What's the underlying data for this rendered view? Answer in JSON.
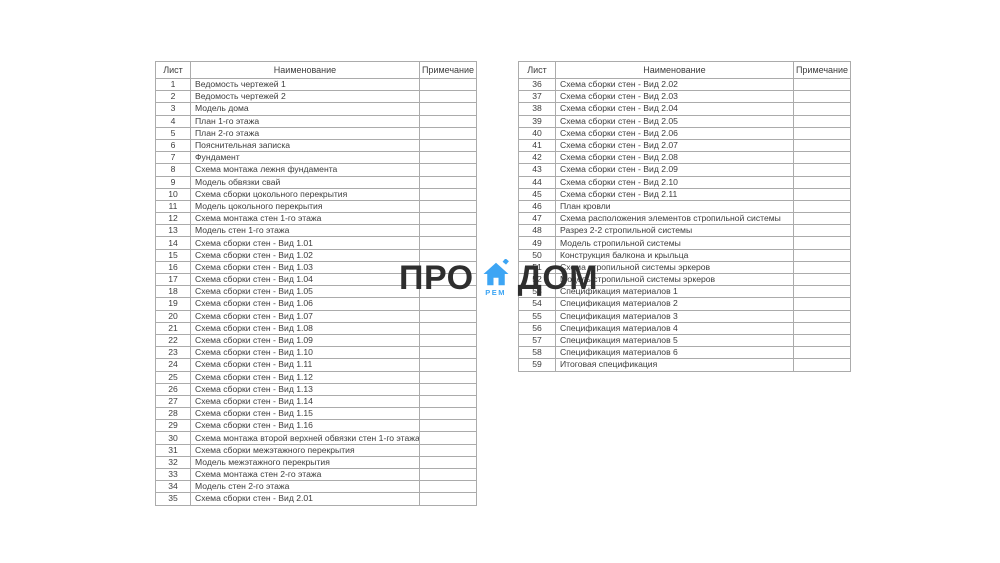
{
  "page": {
    "background": "#ffffff"
  },
  "watermark": {
    "text_left": "ПРО",
    "text_right": "ДОМ",
    "subtext": "РЕМ",
    "text_color": "#2e2e2e",
    "accent_color": "#3da5f4"
  },
  "tables": [
    {
      "id": "left",
      "headers": [
        "Лист",
        "Наименование",
        "Примечание"
      ],
      "rows": [
        [
          "1",
          "Ведомость чертежей 1",
          ""
        ],
        [
          "2",
          "Ведомость чертежей 2",
          ""
        ],
        [
          "3",
          "Модель дома",
          ""
        ],
        [
          "4",
          "План 1-го этажа",
          ""
        ],
        [
          "5",
          "План 2-го этажа",
          ""
        ],
        [
          "6",
          "Пояснительная записка",
          ""
        ],
        [
          "7",
          "Фундамент",
          ""
        ],
        [
          "8",
          "Схема монтажа лежня фундамента",
          ""
        ],
        [
          "9",
          "Модель обвязки свай",
          ""
        ],
        [
          "10",
          "Схема сборки цокольного перекрытия",
          ""
        ],
        [
          "11",
          "Модель цокольного перекрытия",
          ""
        ],
        [
          "12",
          "Схема монтажа стен 1-го этажа",
          ""
        ],
        [
          "13",
          "Модель стен 1-го этажа",
          ""
        ],
        [
          "14",
          "Схема сборки стен - Вид 1.01",
          ""
        ],
        [
          "15",
          "Схема сборки стен - Вид 1.02",
          ""
        ],
        [
          "16",
          "Схема сборки стен - Вид 1.03",
          ""
        ],
        [
          "17",
          "Схема сборки стен - Вид 1.04",
          ""
        ],
        [
          "18",
          "Схема сборки стен - Вид 1.05",
          ""
        ],
        [
          "19",
          "Схема сборки стен - Вид 1.06",
          ""
        ],
        [
          "20",
          "Схема сборки стен - Вид 1.07",
          ""
        ],
        [
          "21",
          "Схема сборки стен - Вид 1.08",
          ""
        ],
        [
          "22",
          "Схема сборки стен - Вид 1.09",
          ""
        ],
        [
          "23",
          "Схема сборки стен - Вид 1.10",
          ""
        ],
        [
          "24",
          "Схема сборки стен - Вид 1.11",
          ""
        ],
        [
          "25",
          "Схема сборки стен - Вид 1.12",
          ""
        ],
        [
          "26",
          "Схема сборки стен - Вид 1.13",
          ""
        ],
        [
          "27",
          "Схема сборки стен - Вид 1.14",
          ""
        ],
        [
          "28",
          "Схема сборки стен - Вид 1.15",
          ""
        ],
        [
          "29",
          "Схема сборки стен - Вид 1.16",
          ""
        ],
        [
          "30",
          "Схема монтажа второй верхней обвязки стен 1-го этажа",
          ""
        ],
        [
          "31",
          "Схема сборки межэтажного перекрытия",
          ""
        ],
        [
          "32",
          "Модель межэтажного перекрытия",
          ""
        ],
        [
          "33",
          "Схема монтажа стен 2-го этажа",
          ""
        ],
        [
          "34",
          "Модель стен 2-го этажа",
          ""
        ],
        [
          "35",
          "Схема сборки стен - Вид 2.01",
          ""
        ]
      ]
    },
    {
      "id": "right",
      "headers": [
        "Лист",
        "Наименование",
        "Примечание"
      ],
      "rows": [
        [
          "36",
          "Схема сборки стен - Вид 2.02",
          ""
        ],
        [
          "37",
          "Схема сборки стен - Вид 2.03",
          ""
        ],
        [
          "38",
          "Схема сборки стен - Вид 2.04",
          ""
        ],
        [
          "39",
          "Схема сборки стен - Вид 2.05",
          ""
        ],
        [
          "40",
          "Схема сборки стен - Вид 2.06",
          ""
        ],
        [
          "41",
          "Схема сборки стен - Вид 2.07",
          ""
        ],
        [
          "42",
          "Схема сборки стен - Вид 2.08",
          ""
        ],
        [
          "43",
          "Схема сборки стен - Вид 2.09",
          ""
        ],
        [
          "44",
          "Схема сборки стен - Вид 2.10",
          ""
        ],
        [
          "45",
          "Схема сборки стен - Вид 2.11",
          ""
        ],
        [
          "46",
          "План кровли",
          ""
        ],
        [
          "47",
          "Схема расположения элементов стропильной системы",
          ""
        ],
        [
          "48",
          "Разрез 2-2 стропильной системы",
          ""
        ],
        [
          "49",
          "Модель стропильной системы",
          ""
        ],
        [
          "50",
          "Конструкция балкона и крыльца",
          ""
        ],
        [
          "51",
          "Схема стропильной системы эркеров",
          ""
        ],
        [
          "52",
          "Модель стропильной системы эркеров",
          ""
        ],
        [
          "53",
          "Спецификация материалов 1",
          ""
        ],
        [
          "54",
          "Спецификация материалов 2",
          ""
        ],
        [
          "55",
          "Спецификация материалов 3",
          ""
        ],
        [
          "56",
          "Спецификация материалов 4",
          ""
        ],
        [
          "57",
          "Спецификация материалов 5",
          ""
        ],
        [
          "58",
          "Спецификация материалов 6",
          ""
        ],
        [
          "59",
          "Итоговая спецификация",
          ""
        ]
      ]
    }
  ]
}
